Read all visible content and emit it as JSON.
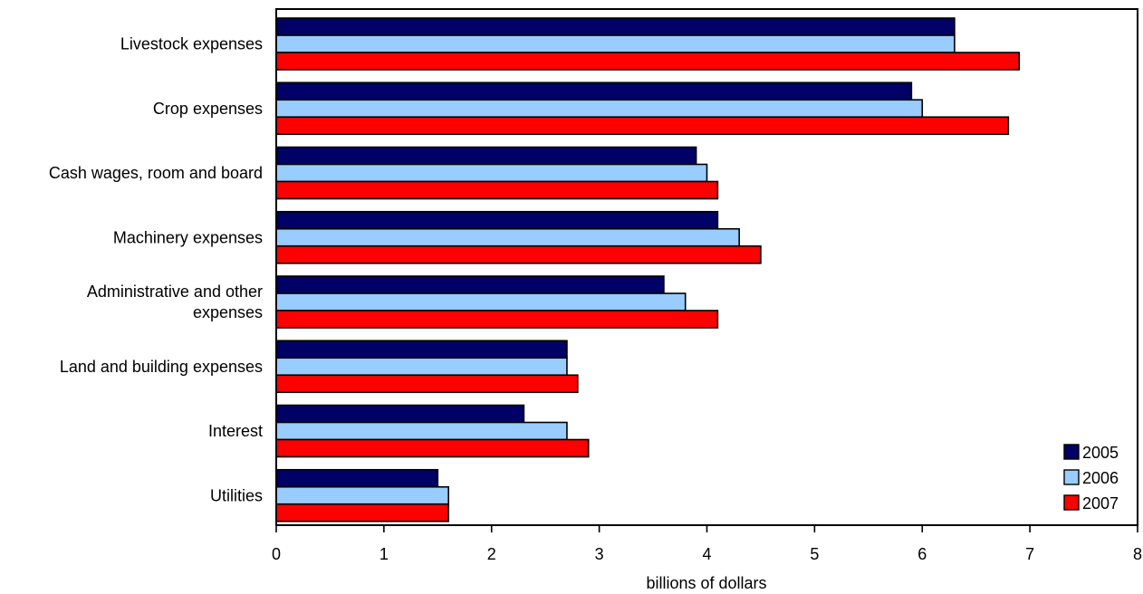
{
  "chart_data": {
    "type": "bar",
    "orientation": "horizontal",
    "categories": [
      [
        "Livestock expenses"
      ],
      [
        "Crop expenses"
      ],
      [
        "Cash wages, room and board"
      ],
      [
        "Machinery expenses"
      ],
      [
        "Administrative and other",
        "expenses"
      ],
      [
        "Land and building expenses"
      ],
      [
        "Interest"
      ],
      [
        "Utilities"
      ]
    ],
    "series": [
      {
        "name": "2005",
        "color": "#000066",
        "values": [
          6.3,
          5.9,
          3.9,
          4.1,
          3.6,
          2.7,
          2.3,
          1.5
        ]
      },
      {
        "name": "2006",
        "color": "#99ccff",
        "values": [
          6.3,
          6.0,
          4.0,
          4.3,
          3.8,
          2.7,
          2.7,
          1.6
        ]
      },
      {
        "name": "2007",
        "color": "#ff0000",
        "values": [
          6.9,
          6.8,
          4.1,
          4.5,
          4.1,
          2.8,
          2.9,
          1.6
        ]
      }
    ],
    "xlabel": "billions of dollars",
    "xlim": [
      0,
      8
    ],
    "xticks": [
      "0",
      "1",
      "2",
      "3",
      "4",
      "5",
      "6",
      "7",
      "8"
    ],
    "grid": false,
    "legend_position": "bottom-right"
  }
}
